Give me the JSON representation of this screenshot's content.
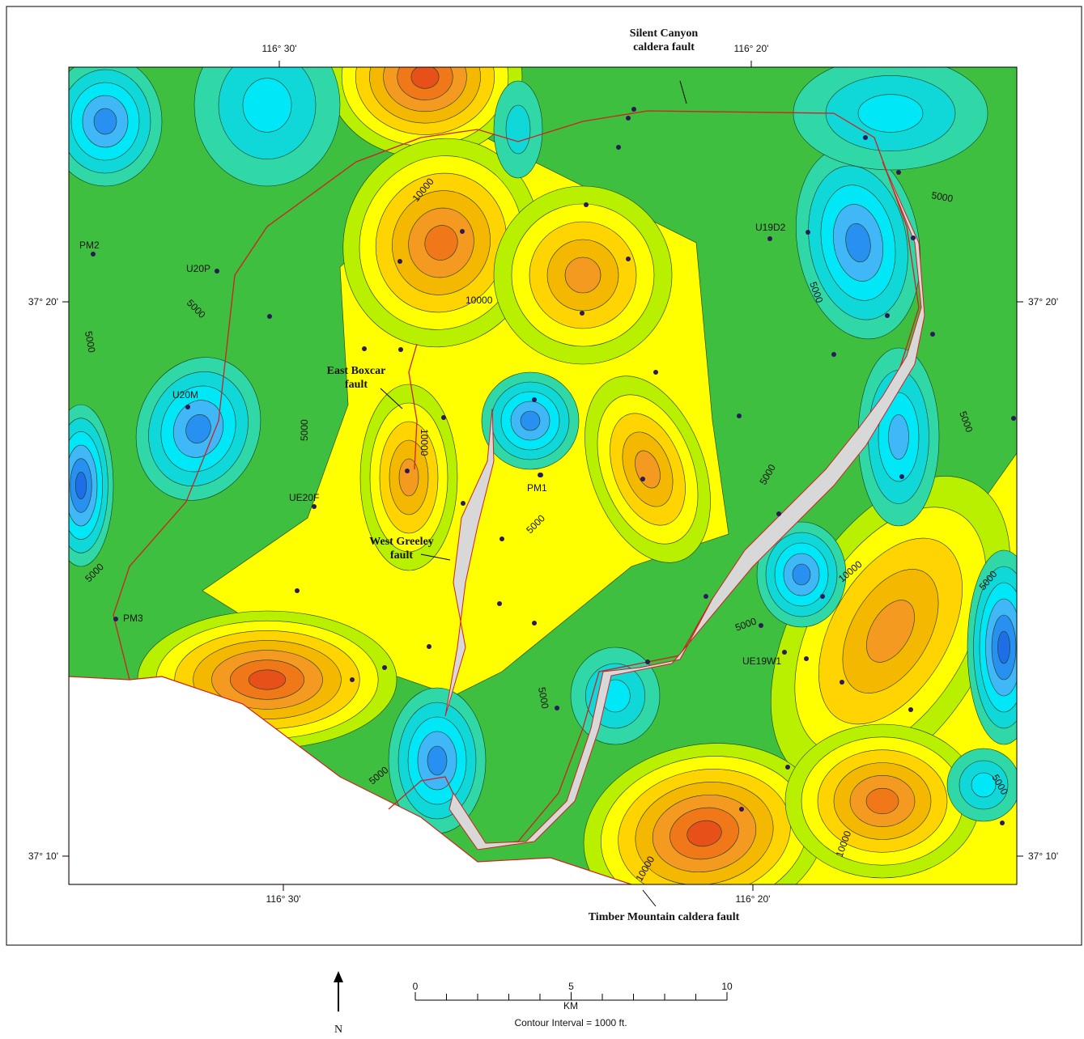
{
  "map": {
    "longitude_labels": [
      "116° 30'",
      "116° 20'"
    ],
    "latitude_labels": [
      "37° 20'",
      "37° 10'"
    ],
    "faults": [
      "Silent Canyon caldera fault",
      "East Boxcar fault",
      "West Greeley fault",
      "Timber Mountain caldera fault"
    ],
    "wells": [
      "PM2",
      "U20P",
      "U20M",
      "UE20F",
      "PM3",
      "PM1",
      "U19D2",
      "UE19W1"
    ],
    "contour_labels": [
      "5000",
      "10000"
    ],
    "scale": {
      "ticks": [
        "0",
        "5",
        "10"
      ],
      "unit": "KM"
    },
    "north": "N",
    "contour_interval": "Contour Interval = 1000 ft."
  }
}
